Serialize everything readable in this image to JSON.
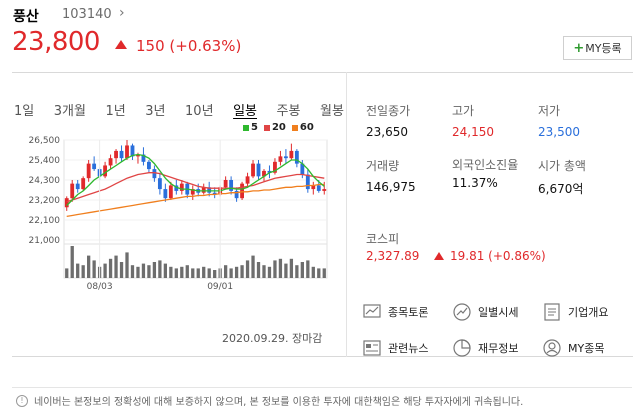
{
  "stock": {
    "name": "풍산",
    "code": "103140",
    "price": "23,800",
    "change": "150 (+0.63%)",
    "my_button": "MY등록"
  },
  "tabs": [
    "1일",
    "3개월",
    "1년",
    "3년",
    "10년",
    "일봉",
    "주봉",
    "월봉"
  ],
  "active_tab": "일봉",
  "legend": [
    {
      "label": "5",
      "color": "#2eb82e"
    },
    {
      "label": "20",
      "color": "#e04545"
    },
    {
      "label": "60",
      "color": "#f07f1e"
    }
  ],
  "chart_data": {
    "type": "candlestick",
    "yticks": [
      "26,500",
      "25,400",
      "24,300",
      "23,200",
      "22,100",
      "21,000"
    ],
    "ylim": [
      21000,
      26500
    ],
    "xticks": [
      "08/03",
      "09/01"
    ],
    "candles": [
      [
        22800,
        23400,
        22600,
        23300
      ],
      [
        23300,
        24300,
        23100,
        24100
      ],
      [
        24100,
        24300,
        23600,
        23800
      ],
      [
        23800,
        24500,
        23700,
        24400
      ],
      [
        24400,
        25400,
        24200,
        25200
      ],
      [
        25200,
        25600,
        24800,
        24900
      ],
      [
        24900,
        25000,
        24300,
        24500
      ],
      [
        24500,
        25300,
        24400,
        25100
      ],
      [
        25100,
        25700,
        24900,
        25500
      ],
      [
        25500,
        26000,
        25200,
        25900
      ],
      [
        25900,
        26200,
        25300,
        25500
      ],
      [
        25500,
        26500,
        25400,
        26200
      ],
      [
        26200,
        26300,
        25400,
        25600
      ],
      [
        25600,
        25800,
        25200,
        25700
      ],
      [
        25700,
        26100,
        25100,
        25300
      ],
      [
        25300,
        25400,
        24700,
        24900
      ],
      [
        24900,
        25100,
        24200,
        24400
      ],
      [
        24400,
        24700,
        23500,
        23800
      ],
      [
        23800,
        24100,
        23100,
        23300
      ],
      [
        23300,
        24200,
        23200,
        24000
      ],
      [
        24000,
        24300,
        23500,
        23700
      ],
      [
        23700,
        24300,
        23500,
        24100
      ],
      [
        24100,
        24200,
        23300,
        23500
      ],
      [
        23500,
        24000,
        23200,
        23800
      ],
      [
        23800,
        24100,
        23400,
        23600
      ],
      [
        23600,
        24100,
        23500,
        23900
      ],
      [
        23900,
        24200,
        23400,
        23600
      ],
      [
        23600,
        23900,
        23300,
        23500
      ],
      [
        23500,
        24000,
        23400,
        23900
      ],
      [
        23900,
        24500,
        23800,
        24300
      ],
      [
        24300,
        24500,
        23500,
        23700
      ],
      [
        23700,
        23900,
        23100,
        23300
      ],
      [
        23300,
        24200,
        23200,
        24100
      ],
      [
        24100,
        24700,
        23900,
        24500
      ],
      [
        24500,
        25400,
        24400,
        25200
      ],
      [
        25200,
        25400,
        24300,
        24500
      ],
      [
        24500,
        24900,
        24200,
        24800
      ],
      [
        24800,
        25100,
        24400,
        24700
      ],
      [
        24700,
        25500,
        24600,
        25300
      ],
      [
        25300,
        25900,
        25100,
        25600
      ],
      [
        25600,
        26000,
        25200,
        25500
      ],
      [
        25500,
        26300,
        25400,
        25900
      ],
      [
        25900,
        26000,
        25000,
        25200
      ],
      [
        25200,
        25400,
        24400,
        24600
      ],
      [
        24600,
        24900,
        23600,
        23800
      ],
      [
        23800,
        24200,
        23500,
        24000
      ],
      [
        24000,
        24300,
        23600,
        23700
      ],
      [
        23700,
        24200,
        23500,
        23800
      ]
    ],
    "ma5": [
      22900,
      23200,
      23500,
      23700,
      24000,
      24300,
      24500,
      24700,
      24900,
      25100,
      25300,
      25500,
      25650,
      25700,
      25650,
      25500,
      25200,
      24800,
      24400,
      24100,
      23900,
      23800,
      23800,
      23750,
      23700,
      23700,
      23700,
      23700,
      23700,
      23800,
      23850,
      23800,
      23800,
      23900,
      24100,
      24300,
      24500,
      24700,
      24800,
      25000,
      25200,
      25400,
      25400,
      25200,
      24900,
      24500,
      24200,
      23950
    ],
    "ma20": [
      23100,
      23200,
      23300,
      23400,
      23500,
      23600,
      23700,
      23800,
      23950,
      24100,
      24250,
      24400,
      24500,
      24600,
      24650,
      24700,
      24700,
      24650,
      24550,
      24450,
      24350,
      24250,
      24150,
      24050,
      23950,
      23900,
      23850,
      23850,
      23850,
      23850,
      23850,
      23850,
      23900,
      23950,
      24000,
      24100,
      24200,
      24300,
      24400,
      24450,
      24500,
      24550,
      24600,
      24600,
      24550,
      24500,
      24450,
      24400
    ],
    "ma60": [
      22300,
      22350,
      22400,
      22450,
      22500,
      22550,
      22600,
      22650,
      22700,
      22750,
      22800,
      22850,
      22900,
      22950,
      23000,
      23050,
      23100,
      23150,
      23200,
      23250,
      23300,
      23350,
      23400,
      23400,
      23450,
      23450,
      23500,
      23500,
      23550,
      23550,
      23600,
      23600,
      23650,
      23650,
      23700,
      23700,
      23750,
      23750,
      23800,
      23850,
      23900,
      23900,
      23950,
      23950,
      24000,
      24000,
      24050,
      24050
    ],
    "volume": [
      30,
      100,
      45,
      40,
      70,
      55,
      35,
      45,
      60,
      70,
      50,
      80,
      40,
      35,
      45,
      40,
      50,
      55,
      45,
      35,
      30,
      35,
      40,
      30,
      30,
      35,
      30,
      25,
      30,
      40,
      30,
      35,
      40,
      55,
      70,
      50,
      40,
      35,
      55,
      60,
      45,
      60,
      40,
      50,
      55,
      35,
      30,
      30
    ]
  },
  "chart_date": "2020.09.29. 장마감",
  "info": {
    "prev_close_label": "전일종가",
    "prev_close": "23,650",
    "high_label": "고가",
    "high": "24,150",
    "low_label": "저가",
    "low": "23,500",
    "volume_label": "거래량",
    "volume": "146,975",
    "foreign_label": "외국인소진율",
    "foreign": "11.37%",
    "mcap_label": "시가 총액",
    "mcap": "6,670억"
  },
  "kospi": {
    "label": "코스피",
    "value": "2,327.89",
    "change": "19.81 (+0.86%)"
  },
  "menu": {
    "discussion": "종목토론",
    "daily": "일별시세",
    "company": "기업개요",
    "news": "관련뉴스",
    "finance": "재무정보",
    "my": "MY종목"
  },
  "notice": "네이버는 본정보의 정확성에 대해 보증하지 않으며, 본 정보를 이용한 투자에 대한책임은 해당 투자자에게 귀속됩니다."
}
